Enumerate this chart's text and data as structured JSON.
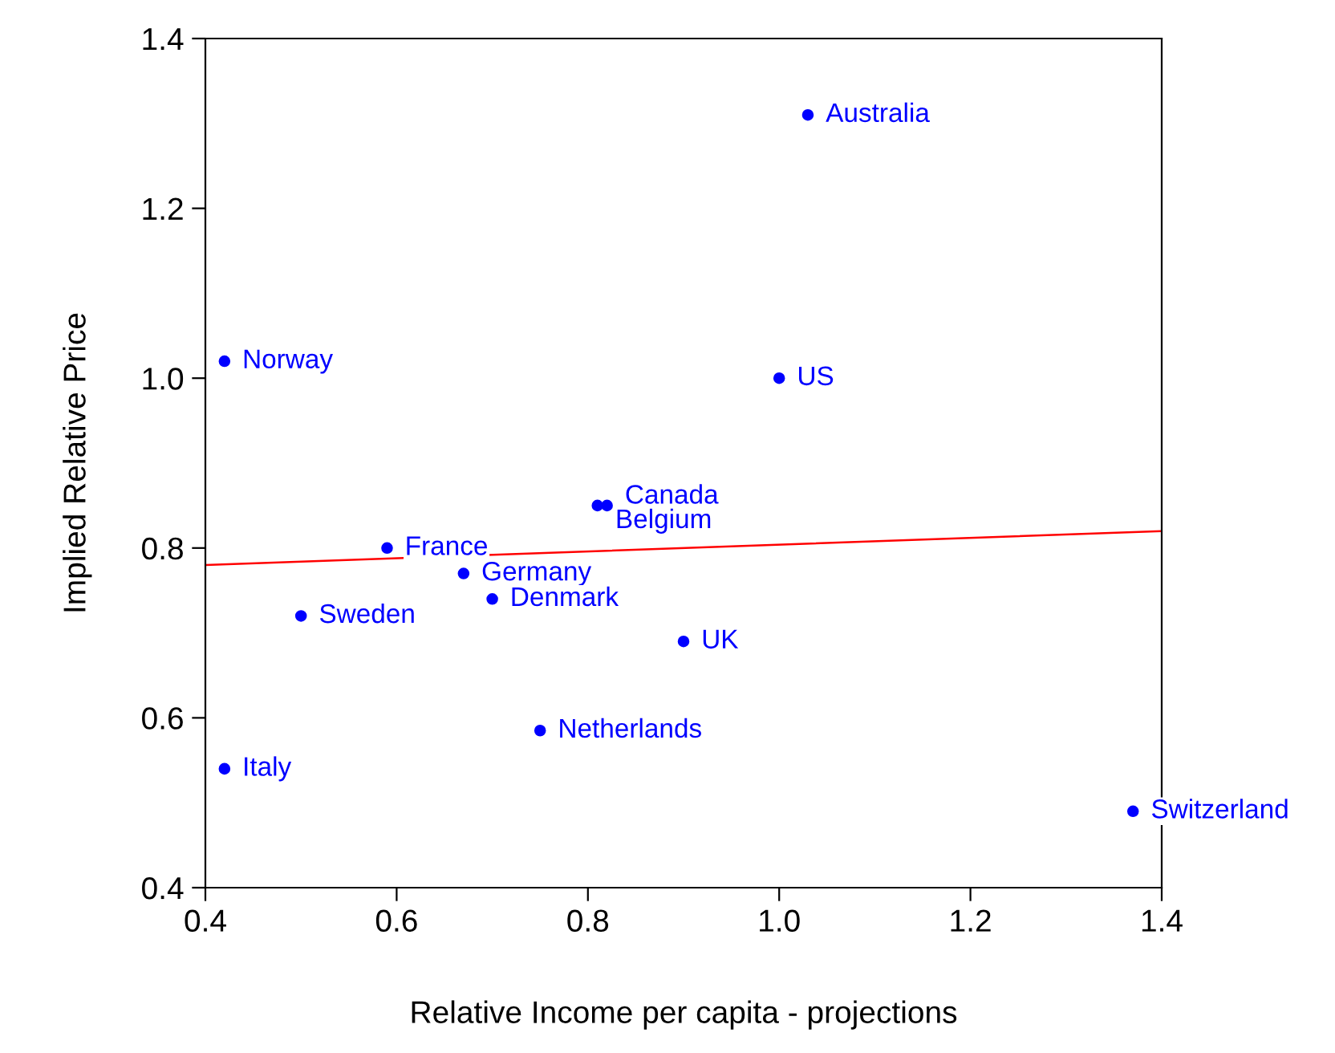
{
  "chart_data": {
    "type": "scatter",
    "xlabel": "Relative Income per capita - projections",
    "ylabel": "Implied Relative Price",
    "xlim": [
      0.4,
      1.4
    ],
    "xticks": [
      {
        "value": 0.4,
        "label": "0.4"
      },
      {
        "value": 0.6,
        "label": "0.6"
      },
      {
        "value": 0.8,
        "label": "0.8"
      },
      {
        "value": 1.0,
        "label": "1.0"
      },
      {
        "value": 1.2,
        "label": "1.2"
      },
      {
        "value": 1.4,
        "label": "1.4"
      }
    ],
    "ylim": [
      0.4,
      1.4
    ],
    "yticks": [
      {
        "value": 0.4,
        "label": "0.4"
      },
      {
        "value": 0.6,
        "label": "0.6"
      },
      {
        "value": 0.8,
        "label": "0.8"
      },
      {
        "value": 1.0,
        "label": "1.0"
      },
      {
        "value": 1.2,
        "label": "1.2"
      },
      {
        "value": 1.4,
        "label": "1.4"
      }
    ],
    "grid": false,
    "legend": false,
    "series": [
      {
        "marker": "circle",
        "color": "#0000ff",
        "x": [
          1.03,
          0.42,
          1.0,
          0.82,
          0.81,
          0.59,
          0.67,
          0.7,
          0.5,
          0.9,
          0.75,
          0.42,
          1.37
        ],
        "values": [
          1.31,
          1.02,
          1.0,
          0.85,
          0.85,
          0.8,
          0.77,
          0.74,
          0.72,
          0.69,
          0.585,
          0.54,
          0.49
        ]
      },
      {
        "type": "line",
        "marker": "none",
        "color": "#ff0000",
        "x": [
          0.4,
          1.4
        ],
        "values": [
          0.78,
          0.82
        ]
      }
    ],
    "annotations": [
      {
        "text": "Australia",
        "x": 1.03,
        "y": 1.31
      },
      {
        "text": "Norway",
        "x": 0.42,
        "y": 1.02
      },
      {
        "text": "US",
        "x": 1.0,
        "y": 1.0
      },
      {
        "text": "Canada",
        "x": 0.82,
        "y": 0.85
      },
      {
        "text": "Belgium",
        "x": 0.81,
        "y": 0.85
      },
      {
        "text": "France",
        "x": 0.59,
        "y": 0.8
      },
      {
        "text": "Germany",
        "x": 0.67,
        "y": 0.77
      },
      {
        "text": "Denmark",
        "x": 0.7,
        "y": 0.74
      },
      {
        "text": "Sweden",
        "x": 0.5,
        "y": 0.72
      },
      {
        "text": "UK",
        "x": 0.9,
        "y": 0.69
      },
      {
        "text": "Netherlands",
        "x": 0.75,
        "y": 0.585
      },
      {
        "text": "Italy",
        "x": 0.42,
        "y": 0.54
      },
      {
        "text": "Switzerland",
        "x": 1.37,
        "y": 0.49
      }
    ]
  }
}
